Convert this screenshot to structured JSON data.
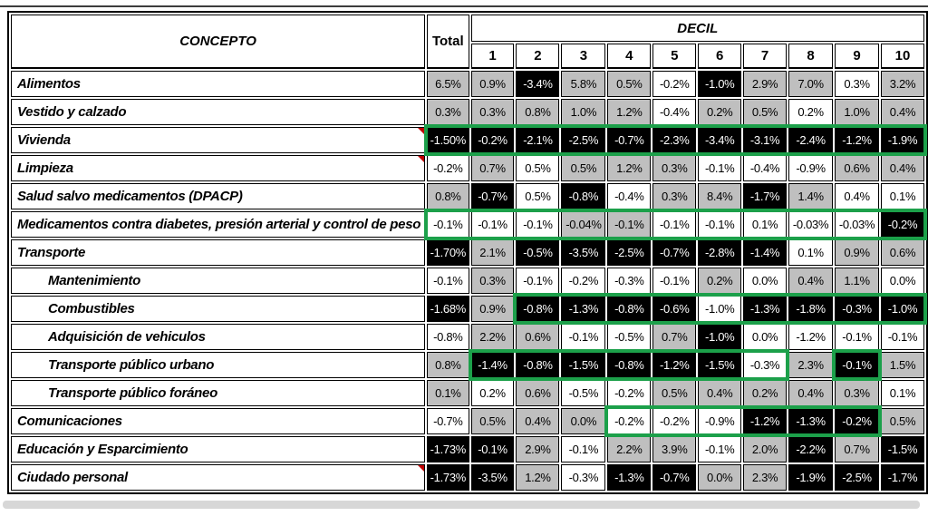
{
  "colors": {
    "accent_green": "#1ca04a",
    "cell_gray": "#bfbfbf",
    "cell_black": "#000000",
    "cell_white": "#ffffff",
    "comment_red": "#c00000"
  },
  "chart_data": {
    "type": "table",
    "header": {
      "concepto": "CONCEPTO",
      "total": "Total",
      "decil": "DECIL"
    },
    "decil_numbers": [
      "1",
      "2",
      "3",
      "4",
      "5",
      "6",
      "7",
      "8",
      "9",
      "10"
    ],
    "shading_legend": {
      "w": "white",
      "g": "gray",
      "k": "black-highlight"
    },
    "rows": [
      {
        "label": "Alimentos",
        "indent": false,
        "comment_marker": false,
        "cells": [
          {
            "v": "6.5%",
            "s": "g"
          },
          {
            "v": "0.9%",
            "s": "g"
          },
          {
            "v": "-3.4%",
            "s": "k"
          },
          {
            "v": "5.8%",
            "s": "g"
          },
          {
            "v": "0.5%",
            "s": "g"
          },
          {
            "v": "-0.2%",
            "s": "w"
          },
          {
            "v": "-1.0%",
            "s": "k"
          },
          {
            "v": "2.9%",
            "s": "g"
          },
          {
            "v": "7.0%",
            "s": "g"
          },
          {
            "v": "0.3%",
            "s": "w"
          },
          {
            "v": "3.2%",
            "s": "g"
          }
        ]
      },
      {
        "label": "Vestido y calzado",
        "indent": false,
        "comment_marker": false,
        "cells": [
          {
            "v": "0.3%",
            "s": "g"
          },
          {
            "v": "0.3%",
            "s": "g"
          },
          {
            "v": "0.8%",
            "s": "g"
          },
          {
            "v": "1.0%",
            "s": "g"
          },
          {
            "v": "1.2%",
            "s": "g"
          },
          {
            "v": "-0.4%",
            "s": "w"
          },
          {
            "v": "0.2%",
            "s": "g"
          },
          {
            "v": "0.5%",
            "s": "g"
          },
          {
            "v": "0.2%",
            "s": "w"
          },
          {
            "v": "1.0%",
            "s": "g"
          },
          {
            "v": "0.4%",
            "s": "g"
          }
        ]
      },
      {
        "label": "Vivienda",
        "indent": false,
        "comment_marker": true,
        "cells": [
          {
            "v": "-1.50%",
            "s": "k"
          },
          {
            "v": "-0.2%",
            "s": "k"
          },
          {
            "v": "-2.1%",
            "s": "k"
          },
          {
            "v": "-2.5%",
            "s": "k"
          },
          {
            "v": "-0.7%",
            "s": "k"
          },
          {
            "v": "-2.3%",
            "s": "k"
          },
          {
            "v": "-3.4%",
            "s": "k"
          },
          {
            "v": "-3.1%",
            "s": "k"
          },
          {
            "v": "-2.4%",
            "s": "k"
          },
          {
            "v": "-1.2%",
            "s": "k"
          },
          {
            "v": "-1.9%",
            "s": "k"
          }
        ]
      },
      {
        "label": "Limpieza",
        "indent": false,
        "comment_marker": true,
        "cells": [
          {
            "v": "-0.2%",
            "s": "w"
          },
          {
            "v": "0.7%",
            "s": "g"
          },
          {
            "v": "0.5%",
            "s": "w"
          },
          {
            "v": "0.5%",
            "s": "g"
          },
          {
            "v": "1.2%",
            "s": "g"
          },
          {
            "v": "0.3%",
            "s": "g"
          },
          {
            "v": "-0.1%",
            "s": "w"
          },
          {
            "v": "-0.4%",
            "s": "w"
          },
          {
            "v": "-0.9%",
            "s": "w"
          },
          {
            "v": "0.6%",
            "s": "g"
          },
          {
            "v": "0.4%",
            "s": "g"
          }
        ]
      },
      {
        "label": "Salud salvo medicamentos (DPACP)",
        "indent": false,
        "comment_marker": false,
        "cells": [
          {
            "v": "0.8%",
            "s": "g"
          },
          {
            "v": "-0.7%",
            "s": "k"
          },
          {
            "v": "0.5%",
            "s": "w"
          },
          {
            "v": "-0.8%",
            "s": "k"
          },
          {
            "v": "-0.4%",
            "s": "w"
          },
          {
            "v": "0.3%",
            "s": "g"
          },
          {
            "v": "8.4%",
            "s": "g"
          },
          {
            "v": "-1.7%",
            "s": "k"
          },
          {
            "v": "1.4%",
            "s": "g"
          },
          {
            "v": "0.4%",
            "s": "w"
          },
          {
            "v": "0.1%",
            "s": "w"
          }
        ]
      },
      {
        "label": "Medicamentos contra diabetes, presión arterial y control de peso",
        "indent": false,
        "comment_marker": false,
        "cells": [
          {
            "v": "-0.1%",
            "s": "w"
          },
          {
            "v": "-0.1%",
            "s": "w"
          },
          {
            "v": "-0.1%",
            "s": "w"
          },
          {
            "v": "-0.04%",
            "s": "g"
          },
          {
            "v": "-0.1%",
            "s": "g"
          },
          {
            "v": "-0.1%",
            "s": "w"
          },
          {
            "v": "-0.1%",
            "s": "w"
          },
          {
            "v": "0.1%",
            "s": "w"
          },
          {
            "v": "-0.03%",
            "s": "w"
          },
          {
            "v": "-0.03%",
            "s": "w"
          },
          {
            "v": "-0.2%",
            "s": "k"
          }
        ]
      },
      {
        "label": "Transporte",
        "indent": false,
        "comment_marker": false,
        "cells": [
          {
            "v": "-1.70%",
            "s": "k"
          },
          {
            "v": "2.1%",
            "s": "g"
          },
          {
            "v": "-0.5%",
            "s": "k"
          },
          {
            "v": "-3.5%",
            "s": "k"
          },
          {
            "v": "-2.5%",
            "s": "k"
          },
          {
            "v": "-0.7%",
            "s": "k"
          },
          {
            "v": "-2.8%",
            "s": "k"
          },
          {
            "v": "-1.4%",
            "s": "k"
          },
          {
            "v": "0.1%",
            "s": "w"
          },
          {
            "v": "0.9%",
            "s": "g"
          },
          {
            "v": "0.6%",
            "s": "g"
          }
        ]
      },
      {
        "label": "Mantenimiento",
        "indent": true,
        "comment_marker": false,
        "cells": [
          {
            "v": "-0.1%",
            "s": "w"
          },
          {
            "v": "0.3%",
            "s": "g"
          },
          {
            "v": "-0.1%",
            "s": "w"
          },
          {
            "v": "-0.2%",
            "s": "w"
          },
          {
            "v": "-0.3%",
            "s": "w"
          },
          {
            "v": "-0.1%",
            "s": "w"
          },
          {
            "v": "0.2%",
            "s": "g"
          },
          {
            "v": "0.0%",
            "s": "w"
          },
          {
            "v": "0.4%",
            "s": "g"
          },
          {
            "v": "1.1%",
            "s": "g"
          },
          {
            "v": "0.0%",
            "s": "w"
          }
        ]
      },
      {
        "label": "Combustibles",
        "indent": true,
        "comment_marker": false,
        "cells": [
          {
            "v": "-1.68%",
            "s": "k"
          },
          {
            "v": "0.9%",
            "s": "g"
          },
          {
            "v": "-0.8%",
            "s": "k"
          },
          {
            "v": "-1.3%",
            "s": "k"
          },
          {
            "v": "-0.8%",
            "s": "k"
          },
          {
            "v": "-0.6%",
            "s": "k"
          },
          {
            "v": "-1.0%",
            "s": "w"
          },
          {
            "v": "-1.3%",
            "s": "k"
          },
          {
            "v": "-1.8%",
            "s": "k"
          },
          {
            "v": "-0.3%",
            "s": "k"
          },
          {
            "v": "-1.0%",
            "s": "k"
          }
        ]
      },
      {
        "label": "Adquisición de vehiculos",
        "indent": true,
        "comment_marker": false,
        "cells": [
          {
            "v": "-0.8%",
            "s": "w"
          },
          {
            "v": "2.2%",
            "s": "g"
          },
          {
            "v": "0.6%",
            "s": "g"
          },
          {
            "v": "-0.1%",
            "s": "w"
          },
          {
            "v": "-0.5%",
            "s": "w"
          },
          {
            "v": "0.7%",
            "s": "g"
          },
          {
            "v": "-1.0%",
            "s": "k"
          },
          {
            "v": "0.0%",
            "s": "w"
          },
          {
            "v": "-1.2%",
            "s": "w"
          },
          {
            "v": "-0.1%",
            "s": "w"
          },
          {
            "v": "-0.1%",
            "s": "w"
          }
        ]
      },
      {
        "label": "Transporte público urbano",
        "indent": true,
        "comment_marker": false,
        "cells": [
          {
            "v": "0.8%",
            "s": "g"
          },
          {
            "v": "-1.4%",
            "s": "k"
          },
          {
            "v": "-0.8%",
            "s": "k"
          },
          {
            "v": "-1.5%",
            "s": "k"
          },
          {
            "v": "-0.8%",
            "s": "k"
          },
          {
            "v": "-1.2%",
            "s": "k"
          },
          {
            "v": "-1.5%",
            "s": "k"
          },
          {
            "v": "-0.3%",
            "s": "w"
          },
          {
            "v": "2.3%",
            "s": "g"
          },
          {
            "v": "-0.1%",
            "s": "k"
          },
          {
            "v": "1.5%",
            "s": "g"
          }
        ]
      },
      {
        "label": "Transporte público foráneo",
        "indent": true,
        "comment_marker": false,
        "cells": [
          {
            "v": "0.1%",
            "s": "g"
          },
          {
            "v": "0.2%",
            "s": "w"
          },
          {
            "v": "0.6%",
            "s": "g"
          },
          {
            "v": "-0.5%",
            "s": "w"
          },
          {
            "v": "-0.2%",
            "s": "w"
          },
          {
            "v": "0.5%",
            "s": "g"
          },
          {
            "v": "0.4%",
            "s": "g"
          },
          {
            "v": "0.2%",
            "s": "g"
          },
          {
            "v": "0.4%",
            "s": "g"
          },
          {
            "v": "0.3%",
            "s": "g"
          },
          {
            "v": "0.1%",
            "s": "w"
          }
        ]
      },
      {
        "label": "Comunicaciones",
        "indent": false,
        "comment_marker": false,
        "cells": [
          {
            "v": "-0.7%",
            "s": "w"
          },
          {
            "v": "0.5%",
            "s": "g"
          },
          {
            "v": "0.4%",
            "s": "g"
          },
          {
            "v": "0.0%",
            "s": "g"
          },
          {
            "v": "-0.2%",
            "s": "w"
          },
          {
            "v": "-0.2%",
            "s": "w"
          },
          {
            "v": "-0.9%",
            "s": "w"
          },
          {
            "v": "-1.2%",
            "s": "k"
          },
          {
            "v": "-1.3%",
            "s": "k"
          },
          {
            "v": "-0.2%",
            "s": "k"
          },
          {
            "v": "0.5%",
            "s": "g"
          }
        ]
      },
      {
        "label": "Educación y Esparcimiento",
        "indent": false,
        "comment_marker": false,
        "cells": [
          {
            "v": "-1.73%",
            "s": "k"
          },
          {
            "v": "-0.1%",
            "s": "k"
          },
          {
            "v": "2.9%",
            "s": "g"
          },
          {
            "v": "-0.1%",
            "s": "w"
          },
          {
            "v": "2.2%",
            "s": "g"
          },
          {
            "v": "3.9%",
            "s": "g"
          },
          {
            "v": "-0.1%",
            "s": "w"
          },
          {
            "v": "2.0%",
            "s": "g"
          },
          {
            "v": "-2.2%",
            "s": "k"
          },
          {
            "v": "0.7%",
            "s": "g"
          },
          {
            "v": "-1.5%",
            "s": "k"
          }
        ]
      },
      {
        "label": "Ciudado personal",
        "indent": false,
        "comment_marker": true,
        "cells": [
          {
            "v": "-1.73%",
            "s": "k"
          },
          {
            "v": "-3.5%",
            "s": "k"
          },
          {
            "v": "1.2%",
            "s": "g"
          },
          {
            "v": "-0.3%",
            "s": "w"
          },
          {
            "v": "-1.3%",
            "s": "k"
          },
          {
            "v": "-0.7%",
            "s": "k"
          },
          {
            "v": "0.0%",
            "s": "g"
          },
          {
            "v": "2.3%",
            "s": "g"
          },
          {
            "v": "-1.9%",
            "s": "k"
          },
          {
            "v": "-2.5%",
            "s": "k"
          },
          {
            "v": "-1.7%",
            "s": "k"
          }
        ]
      }
    ],
    "green_boxes": [
      {
        "row": 2,
        "from": 0,
        "to": 10
      },
      {
        "row": 5,
        "from": 0,
        "to": 10
      },
      {
        "row": 8,
        "from": 2,
        "to": 10
      },
      {
        "row": 10,
        "from": 1,
        "to": 7
      },
      {
        "row": 10,
        "from": 9,
        "to": 9
      },
      {
        "row": 12,
        "from": 4,
        "to": 9
      }
    ]
  }
}
